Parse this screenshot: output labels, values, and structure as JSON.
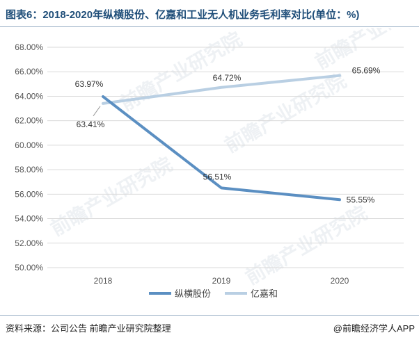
{
  "title": "图表6：2018-2020年纵横股份、亿嘉和工业无人机业务毛利率对比(单位：%)",
  "source": "资料来源：公司公告 前瞻产业研究院整理",
  "credit": "@前瞻经济学人APP",
  "watermark": "前瞻产业研究院",
  "chart_data": {
    "type": "line",
    "categories": [
      "2018",
      "2019",
      "2020"
    ],
    "y_ticks": [
      "50.00%",
      "52.00%",
      "54.00%",
      "56.00%",
      "58.00%",
      "60.00%",
      "62.00%",
      "64.00%",
      "66.00%",
      "68.00%"
    ],
    "ylim": [
      50,
      68
    ],
    "grid": true,
    "legend_position": "bottom",
    "series": [
      {
        "name": "纵横股份",
        "values": [
          63.97,
          56.51,
          55.55
        ],
        "labels": [
          "63.97%",
          "56.51%",
          "55.55%"
        ],
        "color": "#5b8fc2"
      },
      {
        "name": "亿嘉和",
        "values": [
          63.41,
          64.72,
          65.69
        ],
        "labels": [
          "63.41%",
          "64.72%",
          "65.69%"
        ],
        "color": "#b9cfe3"
      }
    ]
  }
}
